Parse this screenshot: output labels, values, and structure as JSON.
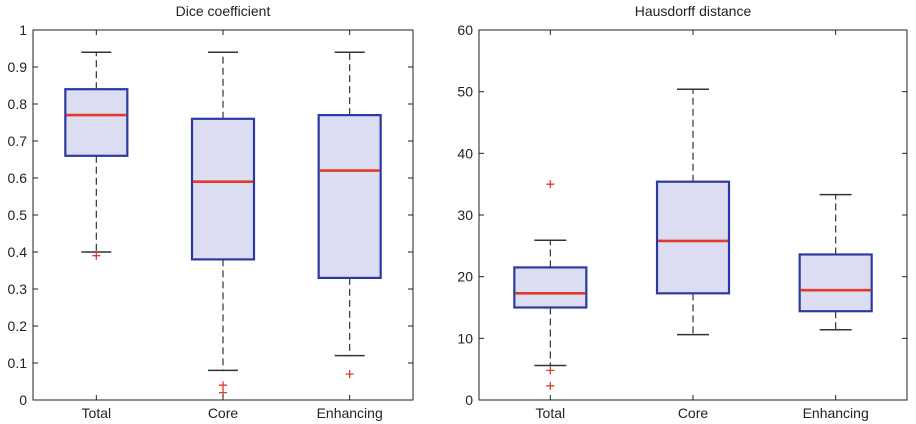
{
  "chart_data": [
    {
      "type": "box",
      "title": "Dice coefficient",
      "xlabel": "",
      "ylabel": "",
      "ylim": [
        0,
        1
      ],
      "yticks": [
        0,
        0.1,
        0.2,
        0.3,
        0.4,
        0.5,
        0.6,
        0.7,
        0.8,
        0.9,
        1
      ],
      "ytick_labels": [
        "0",
        "0.1",
        "0.2",
        "0.3",
        "0.4",
        "0.5",
        "0.6",
        "0.7",
        "0.8",
        "0.9",
        "1"
      ],
      "categories": [
        "Total",
        "Core",
        "Enhancing"
      ],
      "boxes": [
        {
          "whisker_low": 0.4,
          "q1": 0.66,
          "median": 0.77,
          "q3": 0.84,
          "whisker_high": 0.94,
          "outliers": [
            0.39
          ]
        },
        {
          "whisker_low": 0.08,
          "q1": 0.38,
          "median": 0.59,
          "q3": 0.76,
          "whisker_high": 0.94,
          "outliers": [
            0.04,
            0.02
          ]
        },
        {
          "whisker_low": 0.12,
          "q1": 0.33,
          "median": 0.62,
          "q3": 0.77,
          "whisker_high": 0.94,
          "outliers": [
            0.07
          ]
        }
      ],
      "grid": false
    },
    {
      "type": "box",
      "title": "Hausdorff distance",
      "xlabel": "",
      "ylabel": "",
      "ylim": [
        0,
        60
      ],
      "yticks": [
        0,
        10,
        20,
        30,
        40,
        50,
        60
      ],
      "ytick_labels": [
        "0",
        "10",
        "20",
        "30",
        "40",
        "50",
        "60"
      ],
      "categories": [
        "Total",
        "Core",
        "Enhancing"
      ],
      "boxes": [
        {
          "whisker_low": 5.6,
          "q1": 15.0,
          "median": 17.3,
          "q3": 21.5,
          "whisker_high": 25.9,
          "outliers": [
            35.0,
            4.8,
            2.3
          ]
        },
        {
          "whisker_low": 10.6,
          "q1": 17.3,
          "median": 25.8,
          "q3": 35.4,
          "whisker_high": 50.4,
          "outliers": []
        },
        {
          "whisker_low": 11.4,
          "q1": 14.4,
          "median": 17.8,
          "q3": 23.6,
          "whisker_high": 33.3,
          "outliers": []
        }
      ],
      "grid": false
    }
  ],
  "colors": {
    "box_fill": "#dcdcf3",
    "box_edge": "#2b3aa0",
    "median": "#e03a2a",
    "whisker": "#333333",
    "outlier": "#e03a2a",
    "axis": "#222222"
  }
}
